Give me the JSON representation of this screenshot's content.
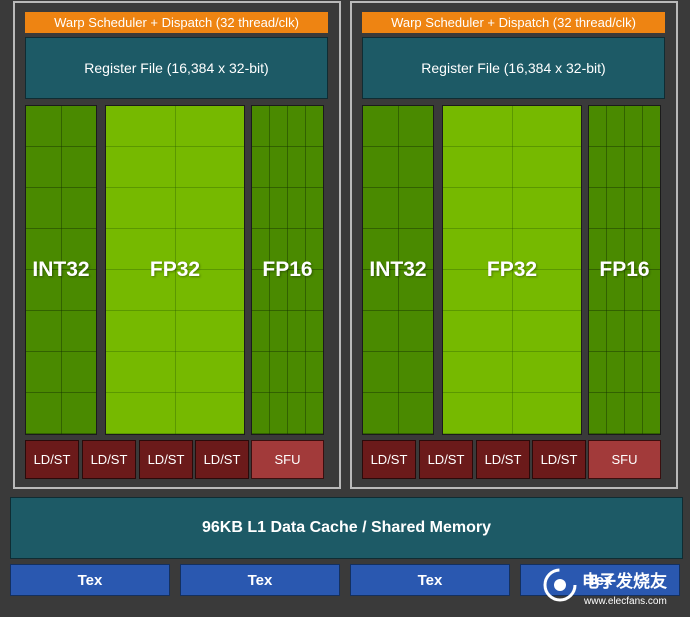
{
  "sm_blocks": [
    {
      "warp_scheduler": "Warp Scheduler + Dispatch (32 thread/clk)",
      "register_file": "Register File (16,384 x 32-bit)",
      "units": {
        "int32": "INT32",
        "fp32": "FP32",
        "fp16": "FP16"
      },
      "ldst": [
        "LD/ST",
        "LD/ST",
        "LD/ST",
        "LD/ST"
      ],
      "sfu": "SFU"
    },
    {
      "warp_scheduler": "Warp Scheduler + Dispatch (32 thread/clk)",
      "register_file": "Register File (16,384 x 32-bit)",
      "units": {
        "int32": "INT32",
        "fp32": "FP32",
        "fp16": "FP16"
      },
      "ldst": [
        "LD/ST",
        "LD/ST",
        "LD/ST",
        "LD/ST"
      ],
      "sfu": "SFU"
    }
  ],
  "l1_cache": "96KB L1 Data Cache / Shared Memory",
  "tex_units": [
    "Tex",
    "Tex",
    "Tex",
    "Tex"
  ],
  "watermark": {
    "brand": "电子发烧友",
    "url": "www.elecfans.com"
  },
  "colors": {
    "warp": "#ee8412",
    "register_file": "#1d5a66",
    "int32": "#4a8a00",
    "fp32": "#76b900",
    "fp16": "#4a8a00",
    "ldst": "#6b1a1a",
    "sfu": "#a23a3a",
    "tex": "#2a58b0",
    "background": "#3a3a3a"
  }
}
